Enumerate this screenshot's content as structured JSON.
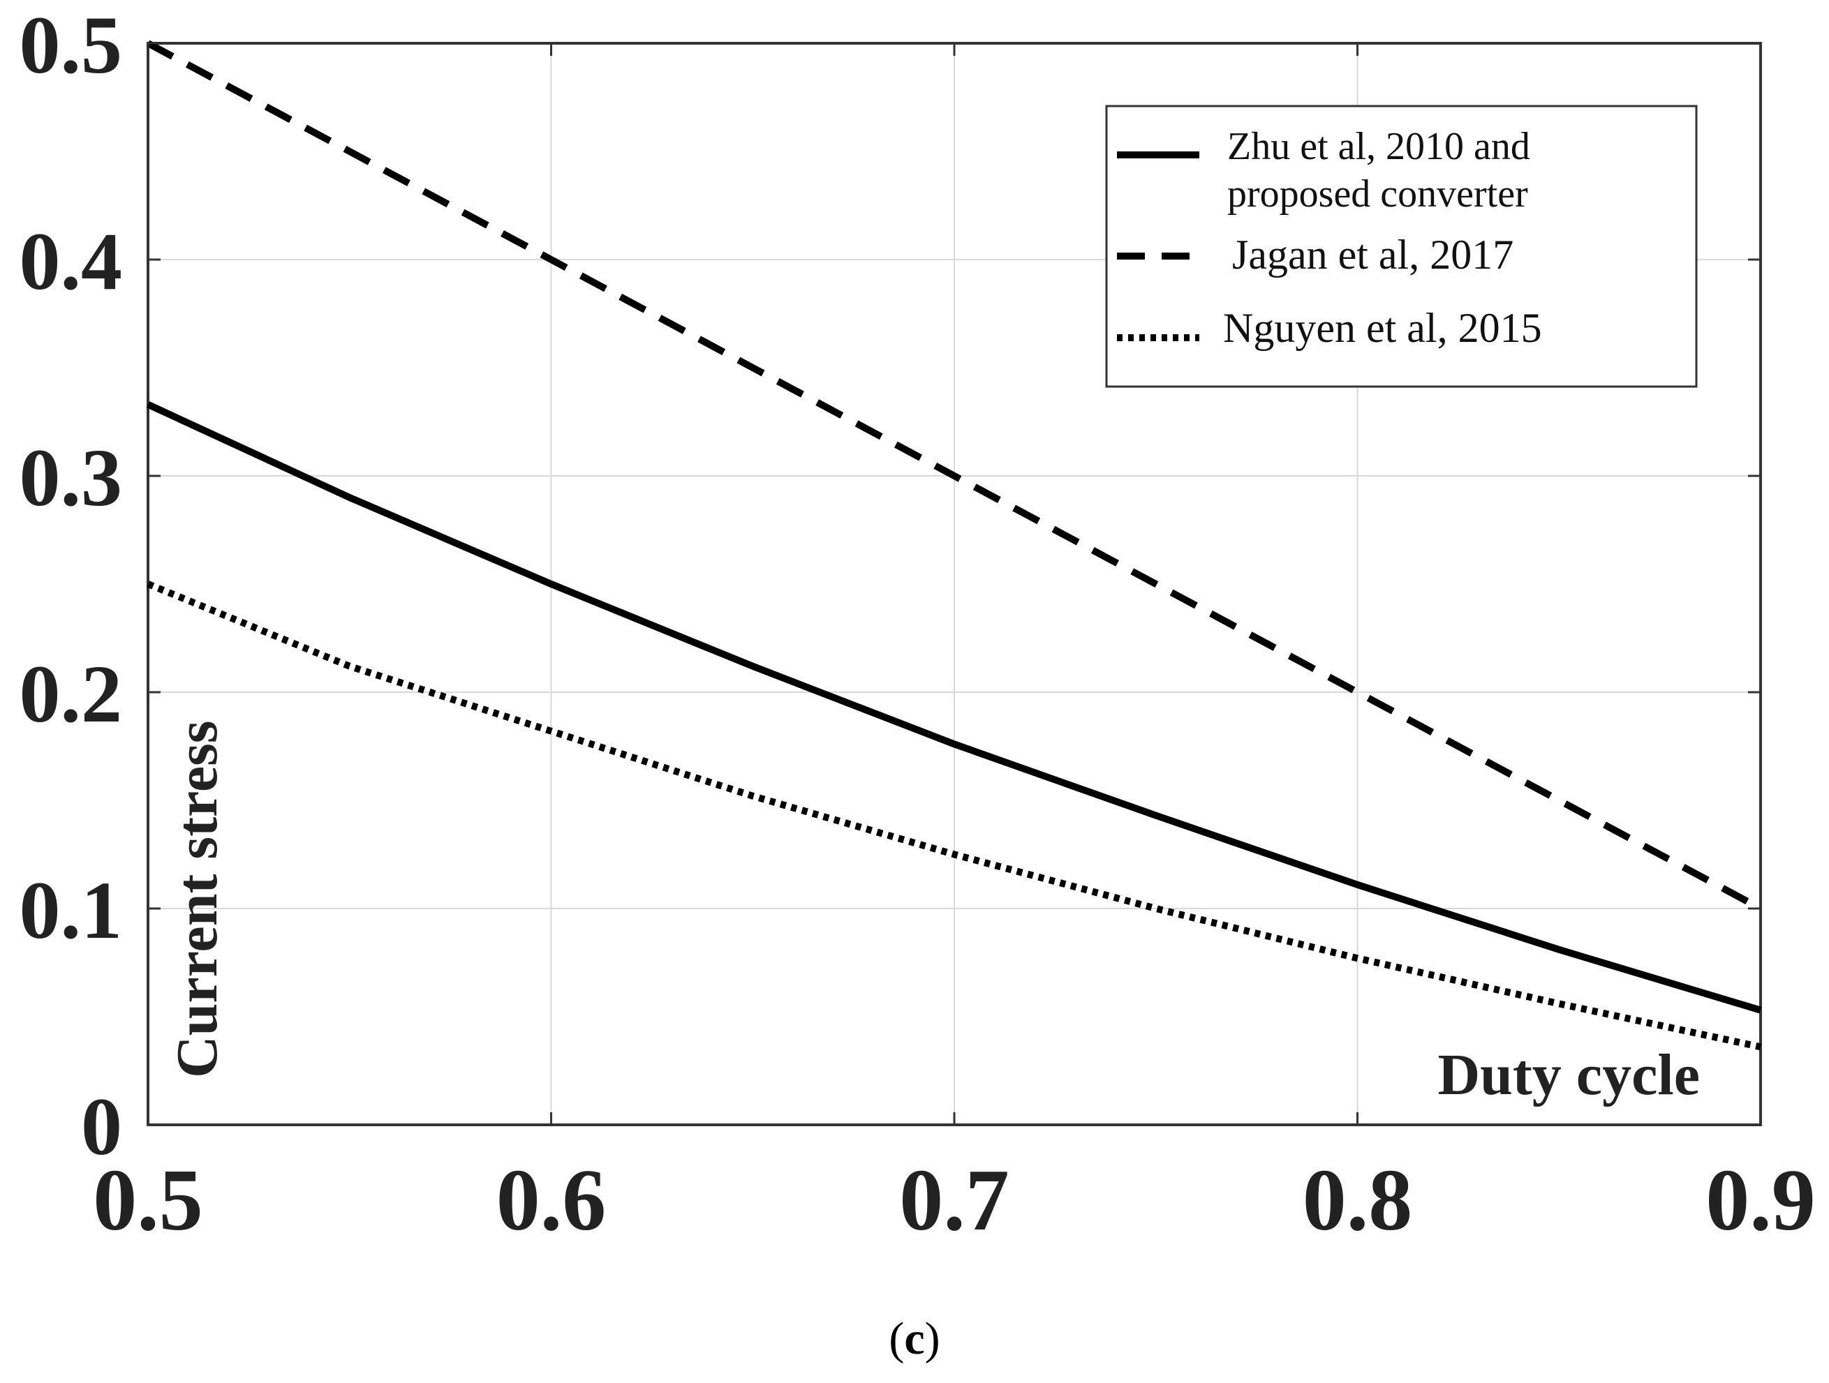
{
  "chart_data": {
    "type": "line",
    "title": "",
    "xlabel": "Duty cycle",
    "ylabel": "Current stress",
    "xlim": [
      0.5,
      0.9
    ],
    "ylim": [
      0,
      0.5
    ],
    "grid": true,
    "x_ticks": [
      "0.5",
      "0.6",
      "0.7",
      "0.8",
      "0.9"
    ],
    "y_ticks": [
      "0",
      "0.1",
      "0.2",
      "0.3",
      "0.4",
      "0.5"
    ],
    "x": [
      0.5,
      0.55,
      0.6,
      0.65,
      0.7,
      0.75,
      0.8,
      0.85,
      0.9
    ],
    "series": [
      {
        "name": "Zhu et al, 2010 and proposed converter",
        "style": "solid",
        "values": [
          0.333,
          0.29,
          0.25,
          0.212,
          0.176,
          0.143,
          0.111,
          0.081,
          0.053
        ]
      },
      {
        "name": "Jagan et al, 2017",
        "style": "dashed",
        "values": [
          0.5,
          0.45,
          0.4,
          0.35,
          0.3,
          0.25,
          0.2,
          0.15,
          0.1
        ]
      },
      {
        "name": "Nguyen et al, 2015",
        "style": "dotted",
        "values": [
          0.25,
          0.212,
          0.182,
          0.152,
          0.125,
          0.1,
          0.077,
          0.056,
          0.036
        ]
      }
    ],
    "legend": {
      "position": "top-right",
      "entries": [
        {
          "line1": "Zhu et al, 2010 and",
          "line2": "proposed converter"
        },
        {
          "line1": "Jagan et al, 2017"
        },
        {
          "line1": "Nguyen et al, 2015"
        }
      ]
    },
    "caption": {
      "open": "(",
      "letter": "c",
      "close": ")"
    },
    "colors": {
      "line": "#000000",
      "grid": "#d9d9d9",
      "axis": "#333333",
      "text": "#222222"
    }
  }
}
